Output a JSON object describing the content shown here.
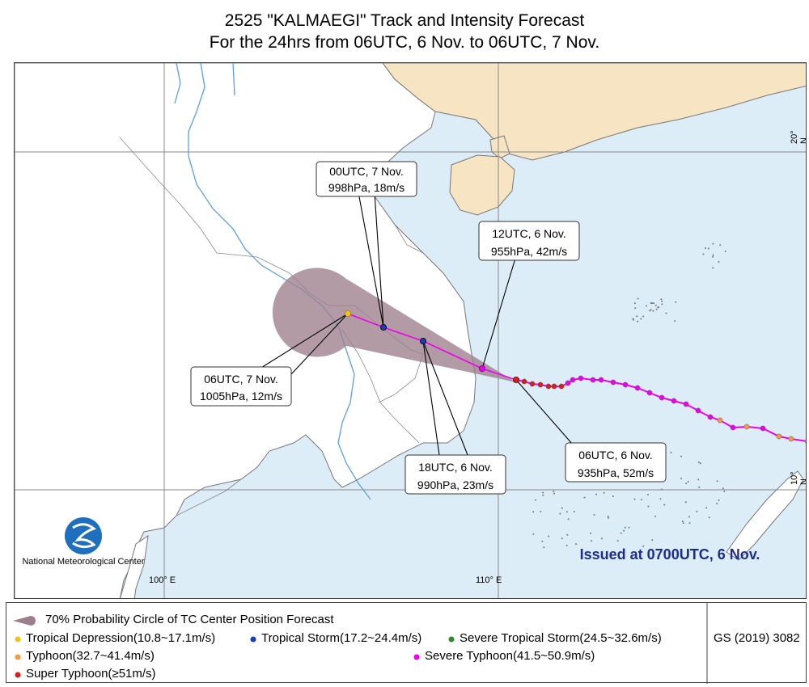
{
  "header": {
    "title": "2525 \"KALMAEGI\" Track and Intensity Forecast",
    "subtitle": "For the 24hrs from 06UTC, 6 Nov. to 06UTC, 7 Nov."
  },
  "map": {
    "axis_labels": {
      "lon_100": "100° E",
      "lon_110": "110° E",
      "lat_20": "20° N",
      "lat_10": "10° N"
    },
    "logo_org": "National Meteorological Center",
    "issued": "Issued at 0700UTC, 6 Nov.",
    "forecast_points": [
      {
        "time": "06UTC, 6 Nov.",
        "detail": "935hPa, 52m/s",
        "category": "Super Typhoon"
      },
      {
        "time": "12UTC, 6 Nov.",
        "detail": "955hPa, 42m/s",
        "category": "Severe Typhoon"
      },
      {
        "time": "18UTC, 6 Nov.",
        "detail": "990hPa, 23m/s",
        "category": "Tropical Storm"
      },
      {
        "time": "00UTC, 7 Nov.",
        "detail": "998hPa, 18m/s",
        "category": "Tropical Storm"
      },
      {
        "time": "06UTC, 7 Nov.",
        "detail": "1005hPa, 12m/s",
        "category": "Tropical Depression"
      }
    ]
  },
  "legend": {
    "probability": "70% Probability Circle of TC Center Position Forecast",
    "td": "Tropical Depression(10.8~17.1m/s)",
    "ts": "Tropical Storm(17.2~24.4m/s)",
    "sts": "Severe Tropical Storm(24.5~32.6m/s)",
    "ty": "Typhoon(32.7~41.4m/s)",
    "sty": "Severe Typhoon(41.5~50.9m/s)",
    "super": "Super Typhoon(≥51m/s)",
    "code": "GS (2019) 3082"
  },
  "colors": {
    "sea": "#dcedf7",
    "land_china": "#f7e4c3",
    "land_other": "#ffffff",
    "track": "#ee00ee",
    "td": "#f1c21b",
    "ts": "#1a3db3",
    "sts": "#2f8a2f",
    "ty": "#f59a4a",
    "sty": "#ee00ee",
    "super": "#d42020",
    "cone": "#9c7f8c",
    "issued_text": "#1c2d8f"
  }
}
